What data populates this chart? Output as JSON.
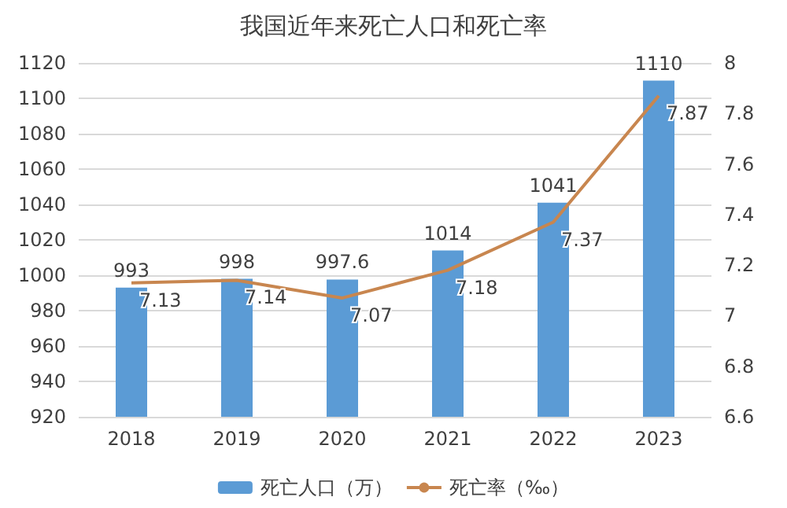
{
  "chart_data": {
    "type": "bar",
    "title": "我国近年来死亡人口和死亡率",
    "categories": [
      "2018",
      "2019",
      "2020",
      "2021",
      "2022",
      "2023"
    ],
    "series": [
      {
        "name": "死亡人口（万）",
        "color": "#5b9bd5",
        "values": [
          993,
          998,
          997.6,
          1014,
          1041,
          1110
        ]
      },
      {
        "name": "死亡率（‰）",
        "type": "line",
        "axis": "y2",
        "color": "#c8864f",
        "values": [
          7.13,
          7.14,
          7.07,
          7.18,
          7.37,
          7.87
        ]
      }
    ],
    "ylim": [
      920,
      1120
    ],
    "yticks": [
      920,
      940,
      960,
      980,
      1000,
      1020,
      1040,
      1060,
      1080,
      1100,
      1120
    ],
    "y2lim": [
      6.6,
      8
    ],
    "y2ticks": [
      6.6,
      6.8,
      7,
      7.2,
      7.4,
      7.6,
      7.8,
      8
    ],
    "grid": "y",
    "legend": "bottom",
    "data_labels": true,
    "marker": "none"
  }
}
